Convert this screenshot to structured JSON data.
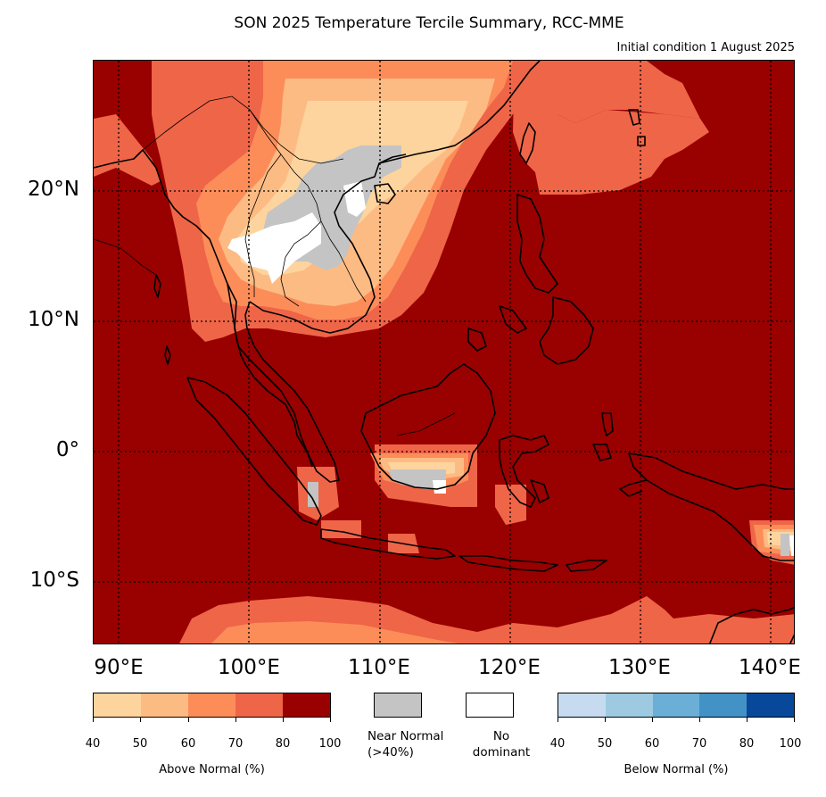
{
  "title": "SON 2025 Temperature Tercile Summary, RCC-MME",
  "subtitle": "Initial condition 1 August 2025",
  "map": {
    "lat_labels": [
      "20°N",
      "10°N",
      "0°",
      "10°S"
    ],
    "lon_labels": [
      "90°E",
      "100°E",
      "110°E",
      "120°E",
      "130°E",
      "140°E"
    ],
    "background_color": "#990000"
  },
  "legend": {
    "above": {
      "title": "Above Normal (%)",
      "ticks": [
        "40",
        "50",
        "60",
        "70",
        "80",
        "100"
      ],
      "colors": [
        "#fdd49e",
        "#fdbb84",
        "#fc8d59",
        "#ef6548",
        "#990000"
      ]
    },
    "near_normal": {
      "label_line1": "Near Normal",
      "label_line2": "(>40%)",
      "color": "#c4c4c4"
    },
    "no_dominant": {
      "label_line1": "No",
      "label_line2": "dominant",
      "color": "#ffffff"
    },
    "below": {
      "title": "Below Normal (%)",
      "ticks": [
        "40",
        "50",
        "60",
        "70",
        "80",
        "100"
      ],
      "colors": [
        "#c6dbef",
        "#9ecae1",
        "#6baed6",
        "#4292c6",
        "#08489b"
      ]
    }
  }
}
